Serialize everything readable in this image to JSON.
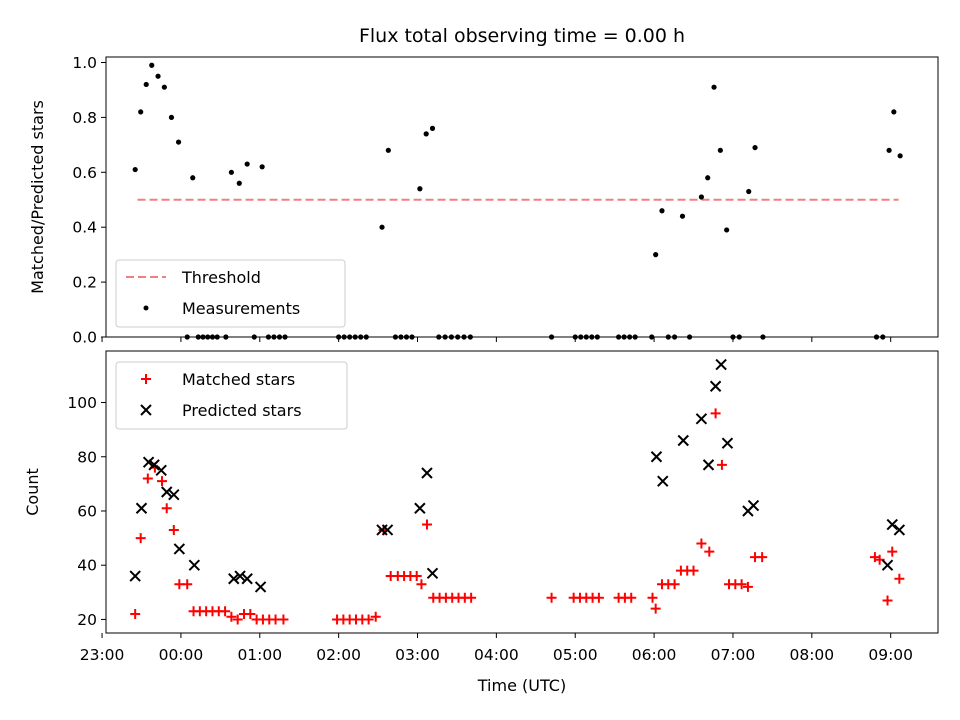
{
  "colors": {
    "threshold": "#f08080",
    "measurement": "#000000",
    "matched": "#ff0000",
    "predicted": "#000000"
  },
  "chart_data": [
    {
      "type": "scatter",
      "title": "Flux total observing time = 0.00 h",
      "xlabel": "",
      "ylabel": "Matched/Predicted stars",
      "ylim": [
        0,
        1.02
      ],
      "yticks": [
        "0.0",
        "0.2",
        "0.4",
        "0.6",
        "0.8",
        "1.0"
      ],
      "xlim_hours": [
        -0.95,
        9.6
      ],
      "xtick_hours": [
        -1,
        0,
        1,
        2,
        3,
        4,
        5,
        6,
        7,
        8,
        9
      ],
      "legend_position": "lower-left",
      "threshold": {
        "name": "Threshold",
        "value": 0.5,
        "x_range_hours": [
          -0.55,
          9.1
        ],
        "style": "dashed"
      },
      "series": [
        {
          "name": "Measurements",
          "marker": "dot",
          "points": [
            [
              -0.58,
              0.61
            ],
            [
              -0.51,
              0.82
            ],
            [
              -0.44,
              0.92
            ],
            [
              -0.37,
              0.99
            ],
            [
              -0.29,
              0.95
            ],
            [
              -0.21,
              0.91
            ],
            [
              -0.12,
              0.8
            ],
            [
              -0.03,
              0.71
            ],
            [
              0.15,
              0.58
            ],
            [
              0.08,
              0.0
            ],
            [
              0.22,
              0.0
            ],
            [
              0.28,
              0.0
            ],
            [
              0.34,
              0.0
            ],
            [
              0.4,
              0.0
            ],
            [
              0.46,
              0.0
            ],
            [
              0.57,
              0.0
            ],
            [
              0.64,
              0.6
            ],
            [
              0.74,
              0.56
            ],
            [
              0.84,
              0.63
            ],
            [
              1.03,
              0.62
            ],
            [
              0.93,
              0.0
            ],
            [
              1.11,
              0.0
            ],
            [
              1.18,
              0.0
            ],
            [
              1.25,
              0.0
            ],
            [
              1.32,
              0.0
            ],
            [
              2.0,
              0.0
            ],
            [
              2.07,
              0.0
            ],
            [
              2.14,
              0.0
            ],
            [
              2.21,
              0.0
            ],
            [
              2.28,
              0.0
            ],
            [
              2.35,
              0.0
            ],
            [
              2.55,
              0.4
            ],
            [
              2.63,
              0.68
            ],
            [
              2.72,
              0.0
            ],
            [
              2.79,
              0.0
            ],
            [
              2.86,
              0.0
            ],
            [
              2.93,
              0.0
            ],
            [
              3.03,
              0.54
            ],
            [
              3.11,
              0.74
            ],
            [
              3.19,
              0.76
            ],
            [
              3.27,
              0.0
            ],
            [
              3.35,
              0.0
            ],
            [
              3.43,
              0.0
            ],
            [
              3.51,
              0.0
            ],
            [
              3.59,
              0.0
            ],
            [
              3.67,
              0.0
            ],
            [
              4.7,
              0.0
            ],
            [
              5.0,
              0.0
            ],
            [
              5.07,
              0.0
            ],
            [
              5.14,
              0.0
            ],
            [
              5.21,
              0.0
            ],
            [
              5.28,
              0.0
            ],
            [
              5.55,
              0.0
            ],
            [
              5.62,
              0.0
            ],
            [
              5.69,
              0.0
            ],
            [
              5.76,
              0.0
            ],
            [
              5.97,
              0.0
            ],
            [
              6.02,
              0.3
            ],
            [
              6.1,
              0.46
            ],
            [
              6.18,
              0.0
            ],
            [
              6.26,
              0.0
            ],
            [
              6.36,
              0.44
            ],
            [
              6.45,
              0.0
            ],
            [
              6.6,
              0.51
            ],
            [
              6.68,
              0.58
            ],
            [
              6.76,
              0.91
            ],
            [
              6.84,
              0.68
            ],
            [
              6.92,
              0.39
            ],
            [
              7.0,
              0.0
            ],
            [
              7.08,
              0.0
            ],
            [
              7.2,
              0.53
            ],
            [
              7.28,
              0.69
            ],
            [
              7.38,
              0.0
            ],
            [
              8.82,
              0.0
            ],
            [
              8.9,
              0.0
            ],
            [
              8.98,
              0.68
            ],
            [
              9.04,
              0.82
            ],
            [
              9.12,
              0.66
            ]
          ]
        }
      ]
    },
    {
      "type": "scatter",
      "title": "",
      "xlabel": "Time (UTC)",
      "ylabel": "Count",
      "ylim": [
        15,
        119
      ],
      "yticks": [
        "20",
        "40",
        "60",
        "80",
        "100"
      ],
      "xlim_hours": [
        -0.95,
        9.6
      ],
      "xtick_hours": [
        -1,
        0,
        1,
        2,
        3,
        4,
        5,
        6,
        7,
        8,
        9
      ],
      "xtick_labels": [
        "23:00",
        "00:00",
        "01:00",
        "02:00",
        "03:00",
        "04:00",
        "05:00",
        "06:00",
        "07:00",
        "08:00",
        "09:00"
      ],
      "legend_position": "upper-left",
      "series": [
        {
          "name": "Matched stars",
          "marker": "plus",
          "points": [
            [
              -0.58,
              22
            ],
            [
              -0.51,
              50
            ],
            [
              -0.42,
              72
            ],
            [
              -0.33,
              76
            ],
            [
              -0.24,
              71
            ],
            [
              -0.18,
              61
            ],
            [
              -0.09,
              53
            ],
            [
              -0.02,
              33
            ],
            [
              0.08,
              33
            ],
            [
              0.16,
              23
            ],
            [
              0.24,
              23
            ],
            [
              0.32,
              23
            ],
            [
              0.4,
              23
            ],
            [
              0.48,
              23
            ],
            [
              0.56,
              23
            ],
            [
              0.64,
              21
            ],
            [
              0.72,
              20
            ],
            [
              0.8,
              22
            ],
            [
              0.88,
              22
            ],
            [
              0.96,
              20
            ],
            [
              1.04,
              20
            ],
            [
              1.12,
              20
            ],
            [
              1.2,
              20
            ],
            [
              1.3,
              20
            ],
            [
              1.98,
              20
            ],
            [
              2.06,
              20
            ],
            [
              2.14,
              20
            ],
            [
              2.22,
              20
            ],
            [
              2.3,
              20
            ],
            [
              2.38,
              20
            ],
            [
              2.47,
              21
            ],
            [
              2.57,
              53
            ],
            [
              2.66,
              36
            ],
            [
              2.75,
              36
            ],
            [
              2.83,
              36
            ],
            [
              2.91,
              36
            ],
            [
              2.99,
              36
            ],
            [
              3.05,
              33
            ],
            [
              3.12,
              55
            ],
            [
              3.2,
              28
            ],
            [
              3.28,
              28
            ],
            [
              3.36,
              28
            ],
            [
              3.44,
              28
            ],
            [
              3.52,
              28
            ],
            [
              3.6,
              28
            ],
            [
              3.68,
              28
            ],
            [
              4.7,
              28
            ],
            [
              4.98,
              28
            ],
            [
              5.06,
              28
            ],
            [
              5.14,
              28
            ],
            [
              5.22,
              28
            ],
            [
              5.3,
              28
            ],
            [
              5.55,
              28
            ],
            [
              5.63,
              28
            ],
            [
              5.71,
              28
            ],
            [
              5.98,
              28
            ],
            [
              6.02,
              24
            ],
            [
              6.1,
              33
            ],
            [
              6.18,
              33
            ],
            [
              6.26,
              33
            ],
            [
              6.34,
              38
            ],
            [
              6.42,
              38
            ],
            [
              6.5,
              38
            ],
            [
              6.6,
              48
            ],
            [
              6.7,
              45
            ],
            [
              6.78,
              96
            ],
            [
              6.86,
              77
            ],
            [
              6.95,
              33
            ],
            [
              7.03,
              33
            ],
            [
              7.11,
              33
            ],
            [
              7.19,
              32
            ],
            [
              7.28,
              43
            ],
            [
              7.37,
              43
            ],
            [
              8.8,
              43
            ],
            [
              8.86,
              42
            ],
            [
              8.96,
              27
            ],
            [
              9.02,
              45
            ],
            [
              9.11,
              35
            ]
          ]
        },
        {
          "name": "Predicted stars",
          "marker": "x",
          "points": [
            [
              -0.58,
              36
            ],
            [
              -0.5,
              61
            ],
            [
              -0.41,
              78
            ],
            [
              -0.34,
              77
            ],
            [
              -0.25,
              75
            ],
            [
              -0.18,
              67
            ],
            [
              -0.09,
              66
            ],
            [
              -0.02,
              46
            ],
            [
              0.17,
              40
            ],
            [
              0.67,
              35
            ],
            [
              0.75,
              36
            ],
            [
              0.84,
              35
            ],
            [
              1.01,
              32
            ],
            [
              2.55,
              53
            ],
            [
              2.62,
              53
            ],
            [
              3.03,
              61
            ],
            [
              3.12,
              74
            ],
            [
              3.19,
              37
            ],
            [
              6.03,
              80
            ],
            [
              6.11,
              71
            ],
            [
              6.37,
              86
            ],
            [
              6.6,
              94
            ],
            [
              6.69,
              77
            ],
            [
              6.78,
              106
            ],
            [
              6.85,
              114
            ],
            [
              6.93,
              85
            ],
            [
              7.19,
              60
            ],
            [
              7.26,
              62
            ],
            [
              8.96,
              40
            ],
            [
              9.02,
              55
            ],
            [
              9.11,
              53
            ]
          ]
        }
      ]
    }
  ]
}
